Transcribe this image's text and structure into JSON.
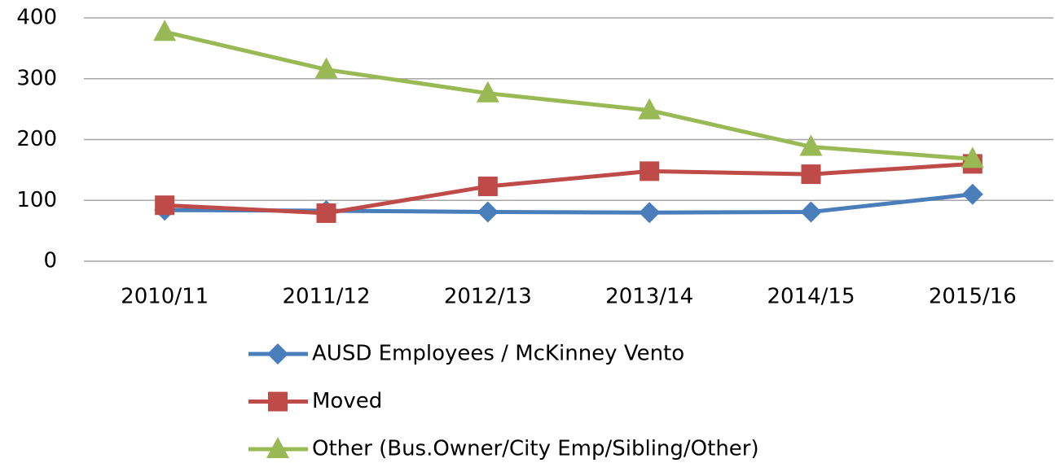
{
  "chart_data": {
    "type": "line",
    "categories": [
      "2010/11",
      "2011/12",
      "2012/13",
      "2013/14",
      "2014/15",
      "2015/16"
    ],
    "series": [
      {
        "name": "AUSD Employees / McKinney Vento",
        "color": "#4a7ebb",
        "marker": "diamond",
        "values": [
          84,
          83,
          81,
          80,
          81,
          110
        ]
      },
      {
        "name": "Moved",
        "color": "#be4b48",
        "marker": "square",
        "values": [
          92,
          79,
          123,
          148,
          143,
          160
        ]
      },
      {
        "name": "Other (Bus.Owner/City Emp/Sibling/Other)",
        "color": "#98b954",
        "marker": "triangle",
        "values": [
          377,
          315,
          276,
          248,
          188,
          168
        ]
      }
    ],
    "ylim": [
      0,
      400
    ],
    "yticks": [
      0,
      100,
      200,
      300,
      400
    ],
    "grid": true,
    "legend": "bottom"
  }
}
